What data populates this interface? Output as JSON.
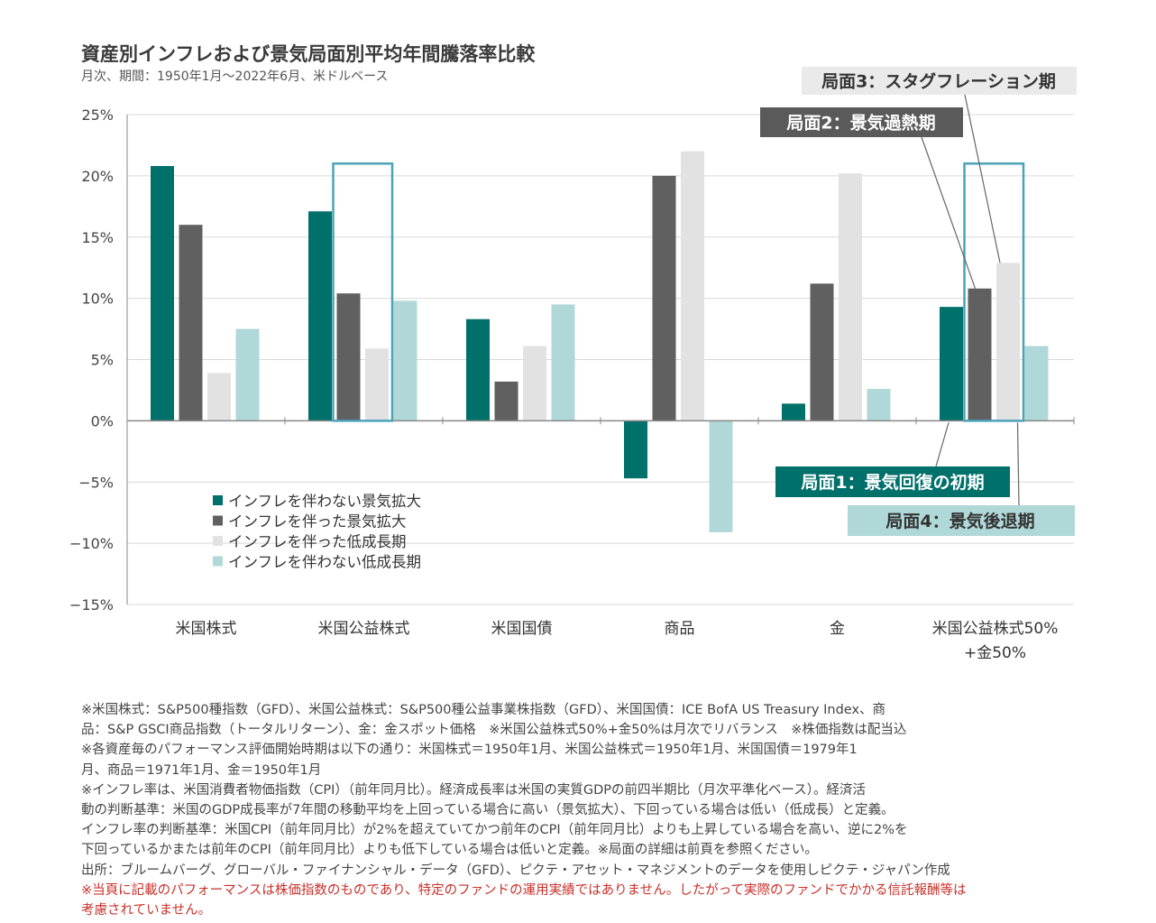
{
  "title": "資産別インフレおよび景気局面別平均年間騰落率比較",
  "subtitle": "月次、期間：1950年1月～2022年6月、米ドルベース",
  "colors": {
    "phase1": "#00706b",
    "phase2": "#606060",
    "phase3": "#e2e2e2",
    "phase4": "#b0d8d8",
    "highlight": "#4ba3b8",
    "axis": "#888888",
    "grid": "#d9d9d9"
  },
  "chart_data": {
    "type": "bar",
    "categories": [
      "米国株式",
      "米国公益株式",
      "米国国債",
      "商品",
      "金",
      "米国公益株式50%\n+金50%"
    ],
    "series": [
      {
        "name": "インフレを伴わない景気拡大",
        "values": [
          20.8,
          17.1,
          8.3,
          -4.7,
          1.4,
          9.3
        ]
      },
      {
        "name": "インフレを伴った景気拡大",
        "values": [
          16.0,
          10.4,
          3.2,
          20.0,
          11.2,
          10.8
        ]
      },
      {
        "name": "インフレを伴った低成長期",
        "values": [
          3.9,
          5.9,
          6.1,
          22.0,
          20.2,
          12.9
        ]
      },
      {
        "name": "インフレを伴わない低成長期",
        "values": [
          7.5,
          9.8,
          9.5,
          -9.1,
          2.6,
          6.1
        ]
      }
    ],
    "ylim": [
      -15,
      25
    ],
    "yticks": [
      "25%",
      "20%",
      "15%",
      "10%",
      "5%",
      "0%",
      "−5%",
      "−10%",
      "−15%"
    ],
    "grid": true,
    "legend_position": "lower-left",
    "highlighted_categories": [
      "米国公益株式",
      "米国公益株式50%\n+金50%"
    ],
    "annotations": [
      {
        "text": "局面3：スタグフレーション期",
        "series_index": 2
      },
      {
        "text": "局面2：景気過熱期",
        "series_index": 1
      },
      {
        "text": "局面1：景気回復の初期",
        "series_index": 0
      },
      {
        "text": "局面4：景気後退期",
        "series_index": 3
      }
    ]
  },
  "notes": [
    "※米国株式：S&P500種指数（GFD）、米国公益株式：S&P500種公益事業株指数（GFD）、米国国債：ICE BofA US Treasury Index、商",
    "品：S&P GSCI商品指数（トータルリターン）、金：金スポット価格　※米国公益株式50%+金50%は月次でリバランス　※株価指数は配当込",
    "※各資産毎のパフォーマンス評価開始時期は以下の通り：米国株式＝1950年1月、米国公益株式＝1950年1月、米国国債＝1979年1",
    "月、商品＝1971年1月、金＝1950年1月",
    "※インフレ率は、米国消費者物価指数（CPI）（前年同月比）。経済成長率は米国の実質GDPの前四半期比（月次平準化ベース）。経済活",
    "動の判断基準：米国のGDP成長率が7年間の移動平均を上回っている場合に高い（景気拡大）、下回っている場合は低い（低成長）と定義。",
    "インフレ率の判断基準：米国CPI（前年同月比）が2%を超えていてかつ前年のCPI（前年同月比）よりも上昇している場合を高い、逆に2%を",
    "下回っているかまたは前年のCPI（前年同月比）よりも低下している場合は低いと定義。※局面の詳細は前頁を参照ください。",
    "出所：ブルームバーグ、グローバル・ファイナンシャル・データ（GFD）、ピクテ・アセット・マネジメントのデータを使用しピクテ・ジャパン作成"
  ],
  "disclaimer": [
    "※当頁に記載のパフォーマンスは株価指数のものであり、特定のファンドの運用実績ではありません。したがって実際のファンドでかかる信託報酬等は",
    "考慮されていません。"
  ]
}
